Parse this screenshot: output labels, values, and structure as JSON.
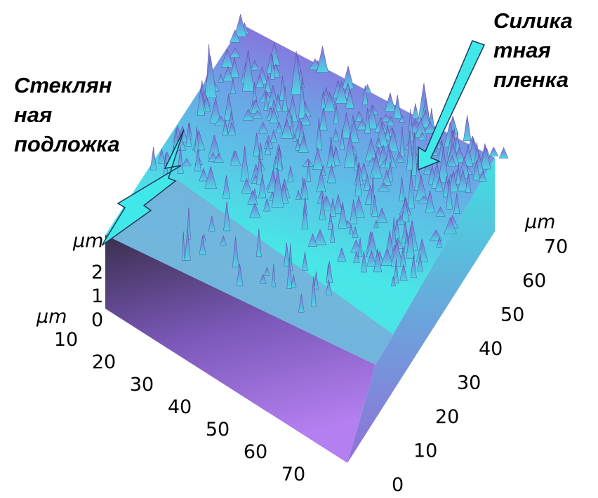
{
  "annotations": {
    "glass_substrate": [
      "Стеклян",
      "ная",
      "подложка"
    ],
    "silicate_film": [
      "Силика",
      "тная",
      "пленка"
    ]
  },
  "axes": {
    "z": {
      "unit": "µm",
      "ticks": [
        0,
        1,
        2
      ]
    },
    "x": {
      "unit": "µm",
      "ticks": [
        10,
        20,
        30,
        40,
        50,
        60,
        70
      ]
    },
    "y": {
      "unit": "µm",
      "ticks": [
        0,
        10,
        20,
        30,
        40,
        50,
        60,
        70
      ]
    }
  }
}
